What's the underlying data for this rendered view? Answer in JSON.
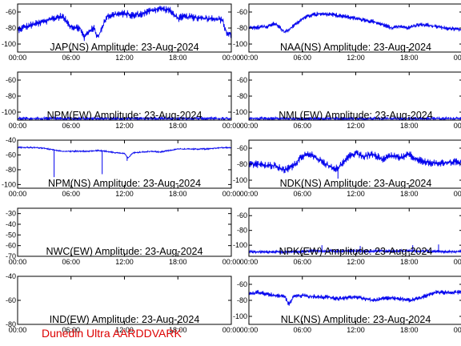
{
  "footer": {
    "credit": "Dunedin Ultra AARDDVARK",
    "credit_color": "#dd0000"
  },
  "series_color": "#0000ee",
  "time_ticks": [
    "00:00",
    "06:00",
    "12:00",
    "18:00",
    "00:00"
  ],
  "chart_data": [
    {
      "type": "line",
      "title": "JAP(NS) Amplitude: 23-Aug-2024",
      "x_range_hours": [
        0,
        24
      ],
      "ylim": [
        -110,
        -50
      ],
      "yticks": [
        -100,
        -80,
        -60
      ],
      "x": [
        0,
        1,
        2,
        3,
        4,
        5,
        6,
        7,
        7.5,
        8,
        8.6,
        9,
        9.5,
        10,
        11,
        12,
        13,
        14,
        15,
        16,
        17,
        18,
        18.5,
        19,
        20,
        21,
        22,
        23,
        23.5,
        24
      ],
      "y": [
        -82,
        -78,
        -75,
        -72,
        -68,
        -65,
        -78,
        -80,
        -92,
        -84,
        -80,
        -92,
        -80,
        -65,
        -63,
        -62,
        -64,
        -62,
        -58,
        -56,
        -57,
        -68,
        -66,
        -66,
        -67,
        -68,
        -68,
        -70,
        -87,
        -88
      ],
      "noise": 5
    },
    {
      "type": "line",
      "title": "NAA(NS) Amplitude: 23-Aug-2024",
      "x_range_hours": [
        0,
        24
      ],
      "ylim": [
        -110,
        -50
      ],
      "yticks": [
        -100,
        -80,
        -60
      ],
      "x": [
        0,
        2,
        3,
        4,
        5,
        6,
        7,
        8,
        10,
        12,
        13,
        14,
        15,
        16,
        17,
        18,
        19,
        20,
        21,
        22,
        24
      ],
      "y": [
        -80,
        -78,
        -74,
        -85,
        -78,
        -68,
        -64,
        -62,
        -64,
        -68,
        -70,
        -72,
        -75,
        -80,
        -78,
        -80,
        -76,
        -76,
        -78,
        -80,
        -82
      ],
      "noise": 3
    },
    {
      "type": "line",
      "title": "NPM(EW) Amplitude: 23-Aug-2024",
      "x_range_hours": [
        0,
        24
      ],
      "ylim": [
        -110,
        -50
      ],
      "yticks": [
        -100,
        -80,
        -60
      ],
      "x": [
        0,
        4,
        8,
        12,
        16,
        20,
        24
      ],
      "y": [
        -108,
        -108,
        -108,
        -108,
        -108,
        -108,
        -108
      ],
      "noise": 2
    },
    {
      "type": "line",
      "title": "NML(EW) Amplitude: 23-Aug-2024",
      "x_range_hours": [
        0,
        24
      ],
      "ylim": [
        -110,
        -50
      ],
      "yticks": [
        -100,
        -80,
        -60
      ],
      "x": [
        0,
        4,
        8,
        12,
        16,
        20,
        24
      ],
      "y": [
        -108,
        -108,
        -108,
        -108,
        -108,
        -108,
        -108
      ],
      "noise": 2
    },
    {
      "type": "line",
      "title": "NPM(NS) Amplitude: 23-Aug-2024",
      "x_range_hours": [
        0,
        24
      ],
      "ylim": [
        -105,
        -40
      ],
      "yticks": [
        -100,
        -80,
        -60,
        -40
      ],
      "x": [
        0,
        2,
        3,
        4,
        5,
        6,
        7,
        8,
        9,
        10,
        11,
        12,
        12.4,
        13,
        14,
        15,
        16,
        17,
        18,
        19,
        20,
        21,
        22,
        23,
        24
      ],
      "y": [
        -50,
        -50,
        -51,
        -53,
        -55,
        -55,
        -55,
        -55,
        -54,
        -55,
        -57,
        -58,
        -64,
        -57,
        -56,
        -55,
        -56,
        -54,
        -52,
        -52,
        -52,
        -52,
        -51,
        -50,
        -50
      ],
      "noise": 1,
      "spikes": [
        {
          "x": 4.1,
          "y": -90
        },
        {
          "x": 9.5,
          "y": -86
        },
        {
          "x": 12.3,
          "y": -68
        }
      ]
    },
    {
      "type": "line",
      "title": "NDK(NS) Amplitude: 23-Aug-2024",
      "x_range_hours": [
        0,
        24
      ],
      "ylim": [
        -110,
        -50
      ],
      "yticks": [
        -100,
        -80,
        -60
      ],
      "x": [
        0,
        1,
        2,
        3,
        4,
        5,
        6,
        7,
        8,
        9,
        10,
        11,
        12,
        13,
        14,
        15,
        16,
        17,
        18,
        19,
        20,
        21,
        22,
        23,
        24
      ],
      "y": [
        -80,
        -80,
        -82,
        -82,
        -88,
        -82,
        -70,
        -68,
        -75,
        -82,
        -86,
        -72,
        -66,
        -70,
        -68,
        -74,
        -70,
        -72,
        -68,
        -74,
        -78,
        -78,
        -78,
        -77,
        -78
      ],
      "noise": 5,
      "spikes": [
        {
          "x": 10,
          "y": -98
        }
      ]
    },
    {
      "type": "line",
      "title": "NWC(EW) Amplitude: 23-Aug-2024",
      "x_range_hours": [
        0,
        24
      ],
      "ylim": [
        -70,
        -25
      ],
      "yticks": [
        -70,
        -60,
        -50,
        -40,
        -30
      ],
      "x": [],
      "y": [],
      "noise": 0
    },
    {
      "type": "line",
      "title": "NPK(EW) Amplitude: 23-Aug-2024",
      "x_range_hours": [
        0,
        24
      ],
      "ylim": [
        -115,
        -50
      ],
      "yticks": [
        -100,
        -80,
        -60
      ],
      "x": [
        0,
        4,
        8,
        12,
        16,
        20,
        24
      ],
      "y": [
        -109,
        -109,
        -108,
        -108,
        -108,
        -108,
        -109
      ],
      "noise": 2,
      "spikes": [
        {
          "x": 8.2,
          "y": -100
        },
        {
          "x": 12.5,
          "y": -101
        },
        {
          "x": 18.4,
          "y": -100
        },
        {
          "x": 21.3,
          "y": -99
        }
      ]
    },
    {
      "type": "line",
      "title": "IND(EW) Amplitude: 23-Aug-2024",
      "x_range_hours": [
        0,
        24
      ],
      "ylim": [
        -80,
        -40
      ],
      "yticks": [
        -80,
        -60,
        -40
      ],
      "x": [],
      "y": [],
      "noise": 0
    },
    {
      "type": "line",
      "title": "NLK(NS) Amplitude: 23-Aug-2024",
      "x_range_hours": [
        0,
        24
      ],
      "ylim": [
        -110,
        -50
      ],
      "yticks": [
        -100,
        -80,
        -60
      ],
      "x": [
        0,
        1,
        2,
        3,
        4,
        4.5,
        5,
        6,
        7,
        8,
        9,
        10,
        11,
        12,
        13,
        14,
        15,
        16,
        17,
        18,
        19,
        20,
        21,
        22,
        23,
        24
      ],
      "y": [
        -72,
        -70,
        -72,
        -74,
        -75,
        -85,
        -76,
        -74,
        -75,
        -76,
        -76,
        -78,
        -77,
        -76,
        -78,
        -80,
        -78,
        -77,
        -78,
        -80,
        -78,
        -74,
        -70,
        -70,
        -70,
        -70
      ],
      "noise": 3
    }
  ]
}
